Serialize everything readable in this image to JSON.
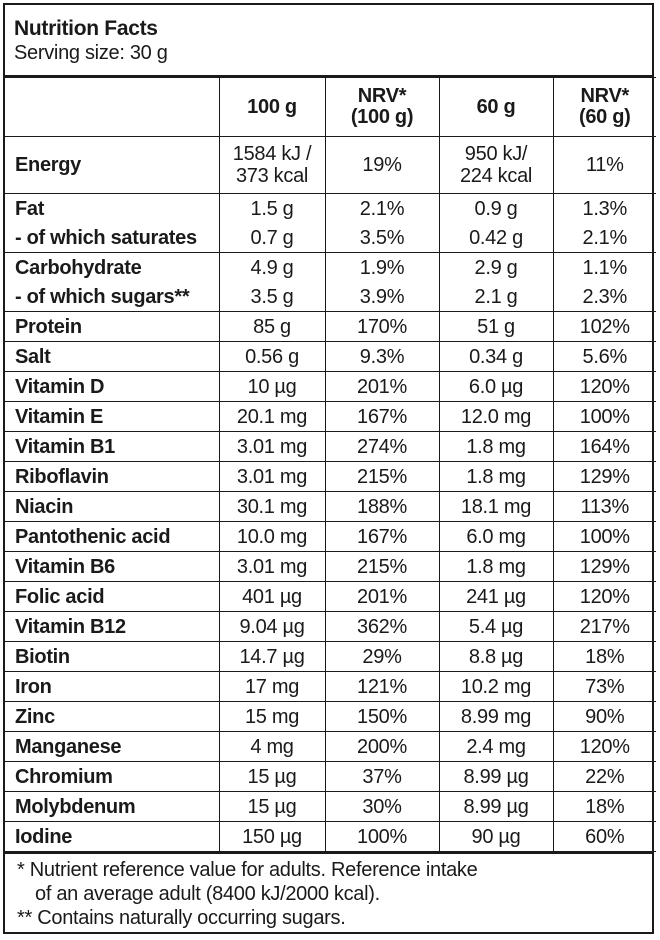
{
  "header": {
    "title": "Nutrition Facts",
    "serving": "Serving size: 30 g"
  },
  "columns": [
    "",
    "100 g",
    "NRV*\n(100 g)",
    "60 g",
    "NRV*\n(60 g)"
  ],
  "rows": [
    {
      "name": "Energy",
      "v100": "1584 kJ /\n373 kcal",
      "nrv100": "19%",
      "v60": "950 kJ/\n224 kcal",
      "nrv60": "11%"
    },
    {
      "name": "Fat",
      "v100": "1.5 g",
      "nrv100": "2.1%",
      "v60": "0.9 g",
      "nrv60": "1.3%"
    },
    {
      "name": "- of which saturates",
      "v100": "0.7 g",
      "nrv100": "3.5%",
      "v60": "0.42 g",
      "nrv60": "2.1%"
    },
    {
      "name": "Carbohydrate",
      "v100": "4.9 g",
      "nrv100": "1.9%",
      "v60": "2.9 g",
      "nrv60": "1.1%"
    },
    {
      "name": "- of which sugars**",
      "v100": "3.5 g",
      "nrv100": "3.9%",
      "v60": "2.1 g",
      "nrv60": "2.3%"
    },
    {
      "name": "Protein",
      "v100": "85 g",
      "nrv100": "170%",
      "v60": "51 g",
      "nrv60": "102%"
    },
    {
      "name": "Salt",
      "v100": "0.56 g",
      "nrv100": "9.3%",
      "v60": "0.34 g",
      "nrv60": "5.6%"
    },
    {
      "name": "Vitamin D",
      "v100": "10 µg",
      "nrv100": "201%",
      "v60": "6.0 µg",
      "nrv60": "120%"
    },
    {
      "name": "Vitamin E",
      "v100": "20.1 mg",
      "nrv100": "167%",
      "v60": "12.0 mg",
      "nrv60": "100%"
    },
    {
      "name": "Vitamin B1",
      "v100": "3.01 mg",
      "nrv100": "274%",
      "v60": "1.8 mg",
      "nrv60": "164%"
    },
    {
      "name": "Riboflavin",
      "v100": "3.01 mg",
      "nrv100": "215%",
      "v60": "1.8 mg",
      "nrv60": "129%"
    },
    {
      "name": "Niacin",
      "v100": "30.1 mg",
      "nrv100": "188%",
      "v60": "18.1 mg",
      "nrv60": "113%"
    },
    {
      "name": "Pantothenic acid",
      "v100": "10.0 mg",
      "nrv100": "167%",
      "v60": "6.0 mg",
      "nrv60": "100%"
    },
    {
      "name": "Vitamin B6",
      "v100": "3.01 mg",
      "nrv100": "215%",
      "v60": "1.8 mg",
      "nrv60": "129%"
    },
    {
      "name": "Folic acid",
      "v100": "401 µg",
      "nrv100": "201%",
      "v60": "241 µg",
      "nrv60": "120%"
    },
    {
      "name": "Vitamin B12",
      "v100": "9.04 µg",
      "nrv100": "362%",
      "v60": "5.4 µg",
      "nrv60": "217%"
    },
    {
      "name": "Biotin",
      "v100": "14.7 µg",
      "nrv100": "29%",
      "v60": "8.8 µg",
      "nrv60": "18%"
    },
    {
      "name": "Iron",
      "v100": "17 mg",
      "nrv100": "121%",
      "v60": "10.2 mg",
      "nrv60": "73%"
    },
    {
      "name": "Zinc",
      "v100": "15 mg",
      "nrv100": "150%",
      "v60": "8.99 mg",
      "nrv60": "90%"
    },
    {
      "name": "Manganese",
      "v100": "4 mg",
      "nrv100": "200%",
      "v60": "2.4 mg",
      "nrv60": "120%"
    },
    {
      "name": "Chromium",
      "v100": "15 µg",
      "nrv100": "37%",
      "v60": "8.99 µg",
      "nrv60": "22%"
    },
    {
      "name": "Molybdenum",
      "v100": "15 µg",
      "nrv100": "30%",
      "v60": "8.99 µg",
      "nrv60": "18%"
    },
    {
      "name": "Iodine",
      "v100": "150 µg",
      "nrv100": "100%",
      "v60": "90 µg",
      "nrv60": "60%"
    }
  ],
  "footnotes": {
    "nrv_line1": "* Nutrient reference value for adults. Reference intake",
    "nrv_line2": "of an average adult (8400 kJ/2000 kcal).",
    "sugars": "** Contains naturally occurring sugars."
  }
}
